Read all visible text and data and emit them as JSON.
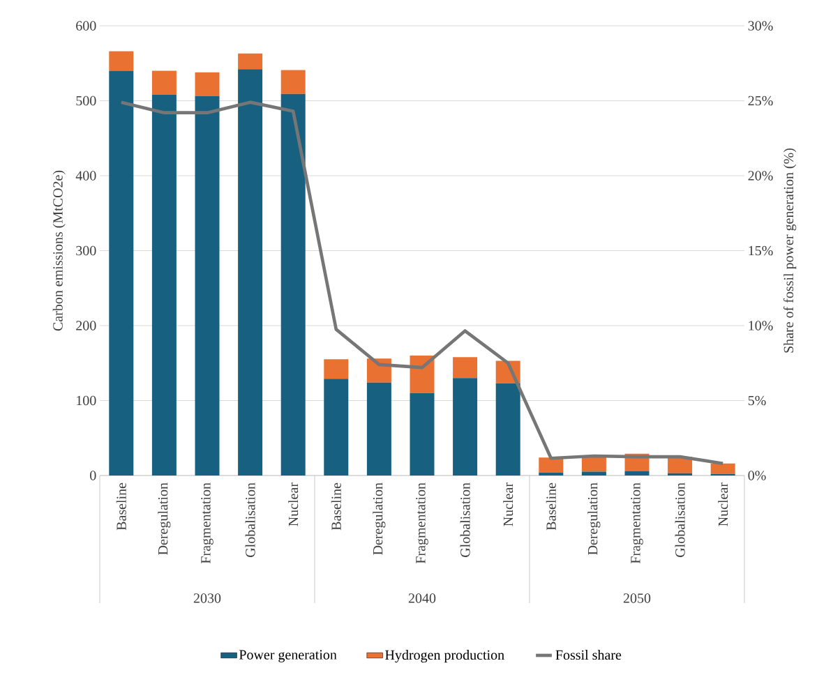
{
  "chart_data": {
    "type": "bar",
    "stacked": true,
    "ylabel": "Carbon emissions (MtCO2e)",
    "y2label": "Share of fossil power generation (%)",
    "categories": [
      "Baseline",
      "Deregulation",
      "Fragmentation",
      "Globalisation",
      "Nuclear",
      "Baseline",
      "Deregulation",
      "Fragmentation",
      "Globalisation",
      "Nuclear",
      "Baseline",
      "Deregulation",
      "Fragmentation",
      "Globalisation",
      "Nuclear"
    ],
    "annotations": [
      "2030",
      "2040",
      "2050"
    ],
    "series": [
      {
        "name": "Power generation",
        "type": "bar",
        "color": "#17607f",
        "values": [
          540,
          508,
          506,
          542,
          509,
          129,
          124,
          110,
          130,
          123,
          4,
          5,
          6,
          3,
          2
        ]
      },
      {
        "name": "Hydrogen production",
        "type": "bar",
        "color": "#e97132",
        "values": [
          26,
          32,
          32,
          21,
          32,
          26,
          32,
          50,
          28,
          30,
          20,
          21,
          23,
          22,
          14
        ]
      },
      {
        "name": "Fossil share",
        "type": "line",
        "axis": "y2",
        "color": "#767676",
        "values": [
          24.9,
          24.2,
          24.2,
          24.9,
          24.3,
          9.75,
          7.4,
          7.2,
          9.65,
          7.5,
          1.15,
          1.3,
          1.25,
          1.25,
          0.8
        ]
      }
    ],
    "ylim": [
      0,
      600
    ],
    "yticks": [
      0,
      100,
      200,
      300,
      400,
      500,
      600
    ],
    "y2lim": [
      0,
      30
    ],
    "y2ticks": [
      {
        "value": 0,
        "label": "0%"
      },
      {
        "value": 5,
        "label": "5%"
      },
      {
        "value": 10,
        "label": "10%"
      },
      {
        "value": 15,
        "label": "15%"
      },
      {
        "value": 20,
        "label": "20%"
      },
      {
        "value": 25,
        "label": "25%"
      },
      {
        "value": 30,
        "label": "30%"
      }
    ],
    "grid": "y",
    "legend": "bottom",
    "marker": "none",
    "line_style": "solid"
  }
}
